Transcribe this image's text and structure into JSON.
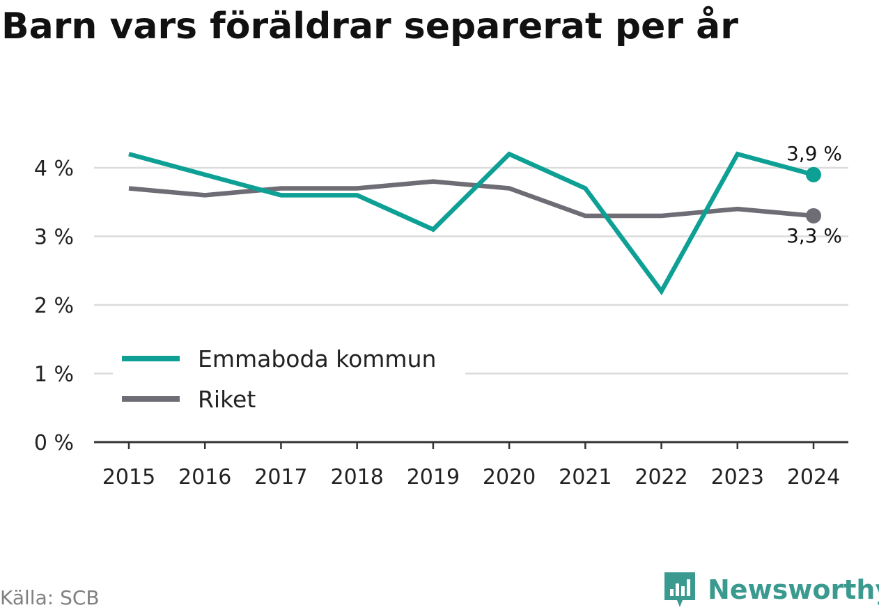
{
  "title": "Barn vars föräldrar separerat per år",
  "source": "Källa: SCB",
  "brand": {
    "name": "Newsworthy",
    "icon": "newsworthy-logo-icon",
    "color": "#3a9a8f"
  },
  "chart_data": {
    "type": "line",
    "title": "Barn vars föräldrar separerat per år",
    "xlabel": "",
    "ylabel": "",
    "x": [
      "2015",
      "2016",
      "2017",
      "2018",
      "2019",
      "2020",
      "2021",
      "2022",
      "2023",
      "2024"
    ],
    "ylim": [
      0,
      4.3
    ],
    "yticks": [
      0,
      1,
      2,
      3,
      4
    ],
    "ytick_labels": [
      "0 %",
      "1 %",
      "2 %",
      "3 %",
      "4 %"
    ],
    "grid": "horizontal",
    "legend_position": "bottom-left",
    "series": [
      {
        "name": "Emmaboda kommun",
        "color": "#0ea095",
        "values": [
          4.2,
          3.9,
          3.6,
          3.6,
          3.1,
          4.2,
          3.7,
          2.2,
          4.2,
          3.9
        ],
        "end_label": "3,9 %"
      },
      {
        "name": "Riket",
        "color": "#6e6d75",
        "values": [
          3.7,
          3.6,
          3.7,
          3.7,
          3.8,
          3.7,
          3.3,
          3.3,
          3.4,
          3.3
        ],
        "end_label": "3,3 %"
      }
    ]
  }
}
